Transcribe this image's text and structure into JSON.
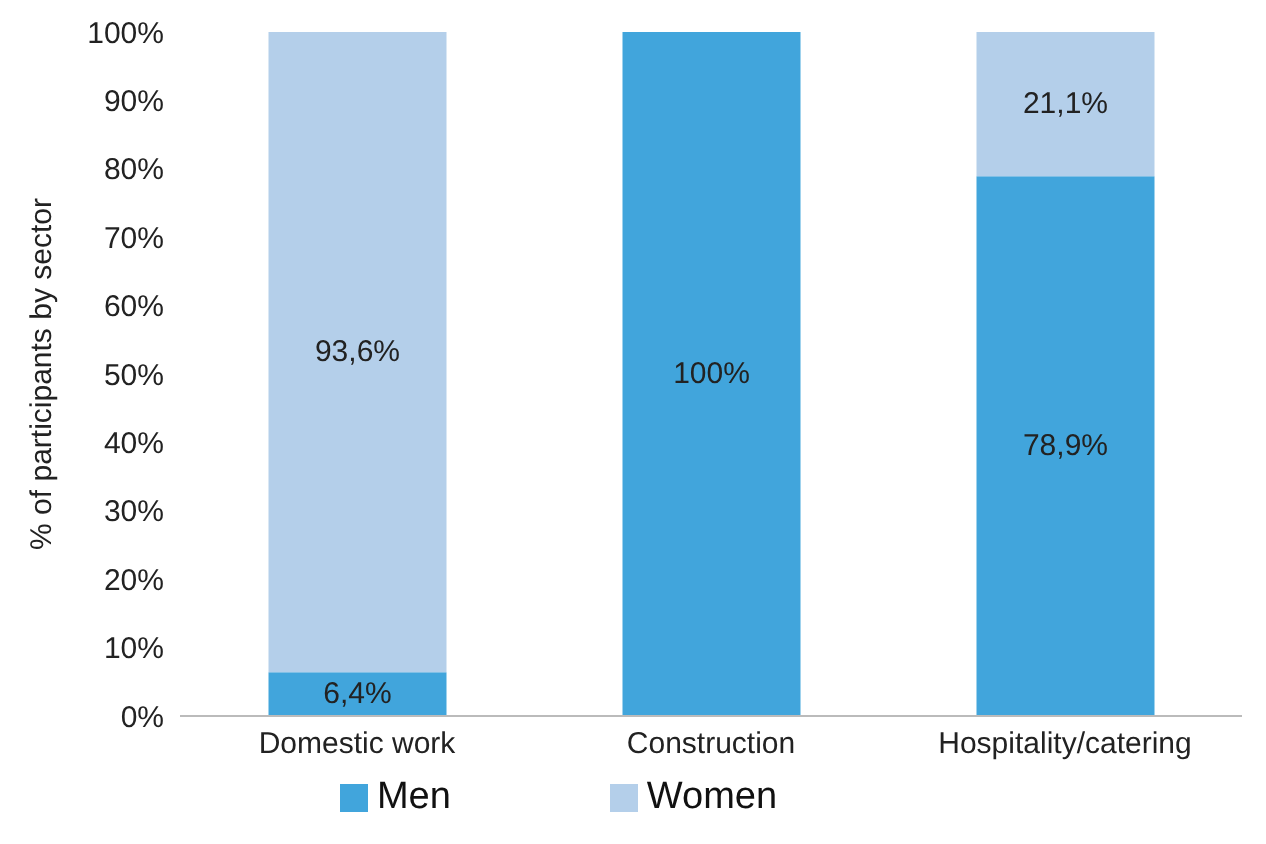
{
  "chart_data": {
    "type": "bar",
    "stacked": true,
    "ylabel": "% of participants by sector",
    "categories": [
      "Domestic work",
      "Construction",
      "Hospitality/catering"
    ],
    "series": [
      {
        "name": "Men",
        "color": "#41a5dc",
        "values": [
          6.4,
          100,
          78.9
        ],
        "value_labels": [
          "6,4%",
          "100%",
          "78,9%"
        ]
      },
      {
        "name": "Women",
        "color": "#b4cfea",
        "values": [
          93.6,
          0,
          21.1
        ],
        "value_labels": [
          "93,6%",
          null,
          "21,1%"
        ]
      }
    ],
    "ylim": [
      0,
      100
    ],
    "yticks": [
      {
        "value": 0,
        "label": "0%"
      },
      {
        "value": 10,
        "label": "10%"
      },
      {
        "value": 20,
        "label": "20%"
      },
      {
        "value": 30,
        "label": "30%"
      },
      {
        "value": 40,
        "label": "40%"
      },
      {
        "value": 50,
        "label": "50%"
      },
      {
        "value": 60,
        "label": "60%"
      },
      {
        "value": 70,
        "label": "70%"
      },
      {
        "value": 80,
        "label": "80%"
      },
      {
        "value": 90,
        "label": "90%"
      },
      {
        "value": 100,
        "label": "100%"
      }
    ],
    "grid": false,
    "legend": "bottom"
  }
}
